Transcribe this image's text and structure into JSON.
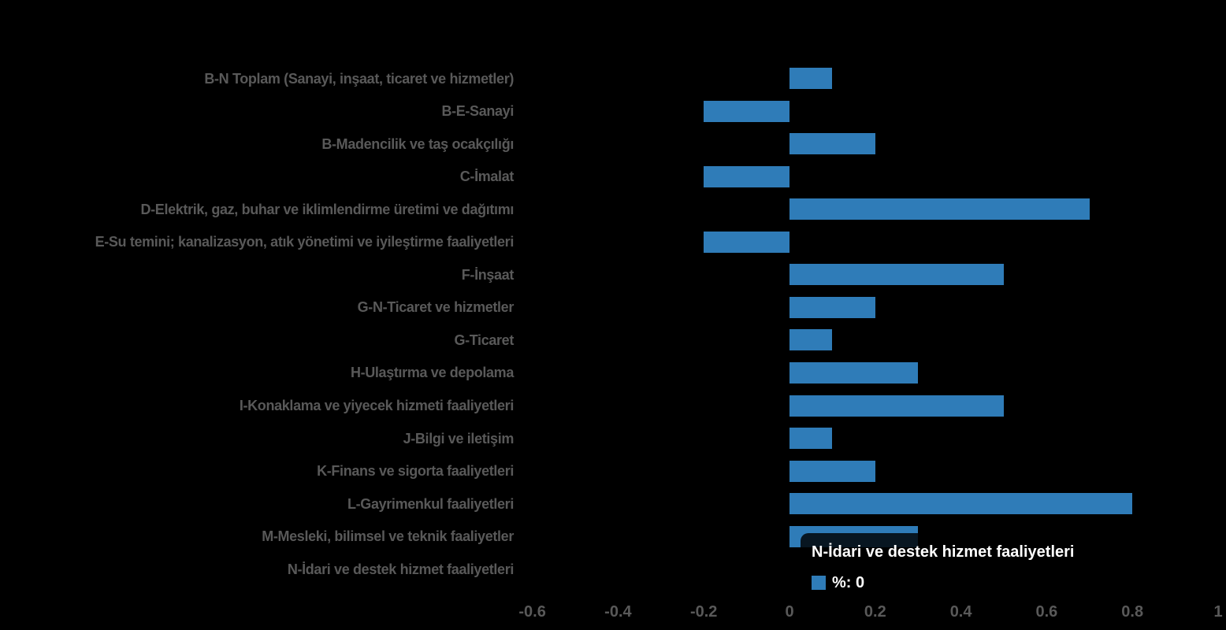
{
  "background": "#000000",
  "chart_data": {
    "type": "bar",
    "orientation": "horizontal",
    "title": "",
    "xlabel": "",
    "ylabel": "",
    "grid": false,
    "legend_position": "hidden",
    "bar_color": "#2F7CB8",
    "label_color": "#595959",
    "background": "#000000",
    "categories": [
      "B-N Toplam (Sanayi, inşaat, ticaret ve hizmetler)",
      "B-E-Sanayi",
      "B-Madencilik ve taş ocakçılığı",
      "C-İmalat",
      "D-Elektrik, gaz, buhar ve iklimlendirme üretimi ve dağıtımı",
      "E-Su temini; kanalizasyon, atık yönetimi ve iyileştirme faaliyetleri",
      "F-İnşaat",
      "G-N-Ticaret ve hizmetler",
      "G-Ticaret",
      "H-Ulaştırma ve depolama",
      "I-Konaklama ve yiyecek hizmeti faaliyetleri",
      "J-Bilgi ve iletişim",
      "K-Finans ve sigorta faaliyetleri",
      "L-Gayrimenkul faaliyetleri",
      "M-Mesleki, bilimsel ve teknik faaliyetler",
      "N-İdari ve destek hizmet faaliyetleri"
    ],
    "series": [
      {
        "name": "%",
        "values": [
          0.1,
          -0.2,
          0.2,
          -0.2,
          0.7,
          -0.2,
          0.5,
          0.2,
          0.1,
          0.3,
          0.5,
          0.1,
          0.2,
          0.8,
          0.3,
          0
        ]
      }
    ],
    "value_axis": {
      "min": -0.6,
      "max": 1,
      "tick_labels": [
        "-0.6",
        "-0.4",
        "-0.2",
        "0",
        "0.2",
        "0.4",
        "0.6",
        "0.8",
        "1"
      ]
    }
  },
  "tooltip": {
    "title": "N-İdari ve destek hizmet faaliyetleri",
    "series_label": "%: 0",
    "swatch_color": "#2F7CB8",
    "background": "rgba(0,0,0,0.82)",
    "text_color": "#ffffff"
  }
}
